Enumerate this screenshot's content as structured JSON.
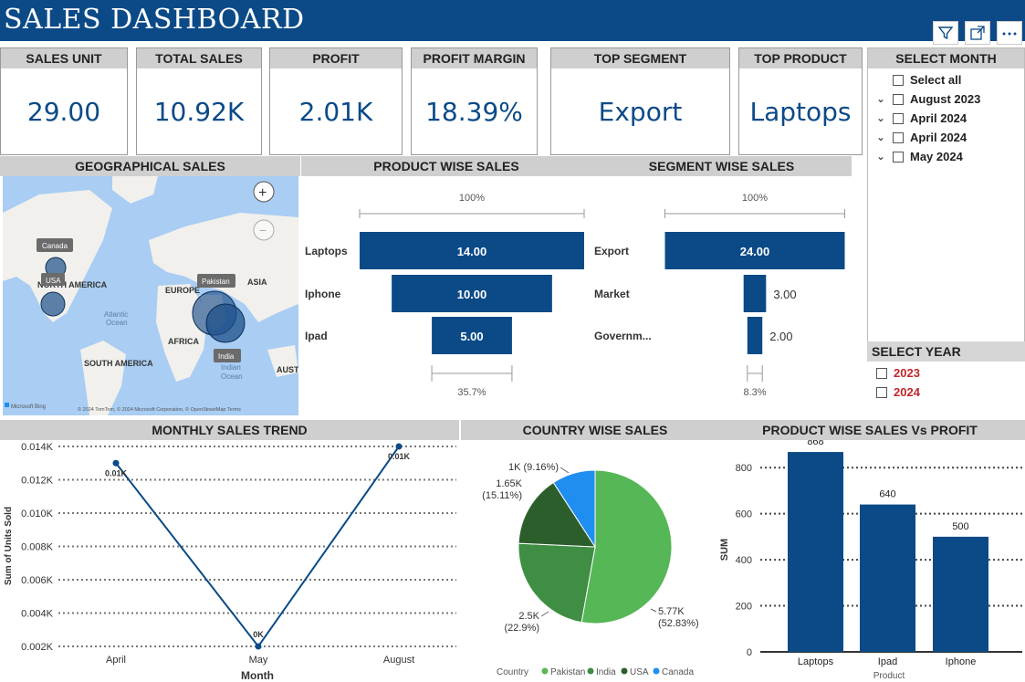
{
  "header": {
    "title": "SALES DASHBOARD",
    "icons": [
      "filter-icon",
      "expand-icon",
      "more-options-icon"
    ]
  },
  "kpis": [
    {
      "label": "SALES UNIT",
      "value": "29.00"
    },
    {
      "label": "TOTAL SALES",
      "value": "10.92K"
    },
    {
      "label": "PROFIT",
      "value": "2.01K"
    },
    {
      "label": "PROFIT MARGIN",
      "value": "18.39%"
    },
    {
      "label": "TOP SEGMENT",
      "value": "Export"
    },
    {
      "label": "TOP PRODUCT",
      "value": "Laptops"
    }
  ],
  "slicer_month": {
    "title": "SELECT MONTH",
    "items": [
      "Select all",
      "August 2023",
      "April 2024",
      "April 2024",
      "May 2024"
    ]
  },
  "slicer_year": {
    "title": "SELECT YEAR",
    "items": [
      "2023",
      "2024"
    ],
    "item_color": "#c0282d"
  },
  "map": {
    "title": "GEOGRAPHICAL SALES",
    "country_labels": [
      "Canada",
      "USA",
      "Pakistan",
      "India"
    ],
    "region_labels": [
      "NORTH AMERICA",
      "EUROPE",
      "ASIA",
      "AFRICA",
      "SOUTH AMERICA",
      "AUSTI"
    ],
    "ocean_labels": [
      "Atlantic",
      "Ocean",
      "Indian",
      "Ocean"
    ],
    "logo_text": "Microsoft Bing",
    "credit": "© 2024 TomTom, © 2024 Microsoft Corporation, © OpenStreetMap  Terms",
    "zoom_in": "+",
    "zoom_out": "−"
  },
  "colors": {
    "primary": "#0b4a87",
    "header_gray": "#cfcfcf",
    "pakistan": "#55b755",
    "india": "#3f8e44",
    "usa": "#2c5e2c",
    "canada": "#1f8ef0"
  },
  "chart_data": [
    {
      "type": "bar",
      "name_hint": "funnel",
      "title": "PRODUCT WISE SALES",
      "categories": [
        "Laptops",
        "Iphone",
        "Ipad"
      ],
      "values": [
        14,
        10,
        5
      ],
      "value_labels": [
        "14.00",
        "10.00",
        "5.00"
      ],
      "top_label": "100%",
      "bottom_label": "35.7%"
    },
    {
      "type": "bar",
      "name_hint": "funnel",
      "title": "SEGMENT WISE SALES",
      "categories": [
        "Export",
        "Market",
        "Governm..."
      ],
      "values": [
        24,
        3,
        2
      ],
      "value_labels": [
        "24.00",
        "3.00",
        "2.00"
      ],
      "top_label": "100%",
      "bottom_label": "8.3%"
    },
    {
      "type": "line",
      "title": "MONTHLY SALES TREND",
      "categories": [
        "April",
        "May",
        "August"
      ],
      "values": [
        0.013,
        0.002,
        0.014
      ],
      "data_labels": [
        "0.01K",
        "0K",
        "0.01K"
      ],
      "xlabel": "Month",
      "ylabel": "Sum of Units Sold",
      "ylim": [
        0.002,
        0.014
      ],
      "yticks": [
        "0.014K",
        "0.012K",
        "0.010K",
        "0.008K",
        "0.006K",
        "0.004K",
        "0.002K"
      ],
      "grid": true
    },
    {
      "type": "pie",
      "title": "COUNTRY WISE SALES",
      "legend_title": "Country",
      "categories": [
        "Pakistan",
        "India",
        "USA",
        "Canada"
      ],
      "values": [
        5.77,
        2.5,
        1.65,
        1.0
      ],
      "labels": [
        [
          "5.77K",
          "(52.83%)"
        ],
        [
          "2.5K",
          "(22.9%)"
        ],
        [
          "1.65K",
          "(15.11%)"
        ],
        [
          "1K (9.16%)",
          ""
        ]
      ],
      "legend_position": "bottom"
    },
    {
      "type": "bar",
      "title": "PRODUCT WISE SALES Vs PROFIT",
      "categories": [
        "Laptops",
        "Ipad",
        "Iphone"
      ],
      "values": [
        868,
        640,
        500
      ],
      "xlabel": "Product",
      "ylabel": "SUM",
      "ylim": [
        0,
        900
      ],
      "yticks": [
        "800",
        "600",
        "400",
        "200",
        "0"
      ],
      "grid": true
    }
  ]
}
